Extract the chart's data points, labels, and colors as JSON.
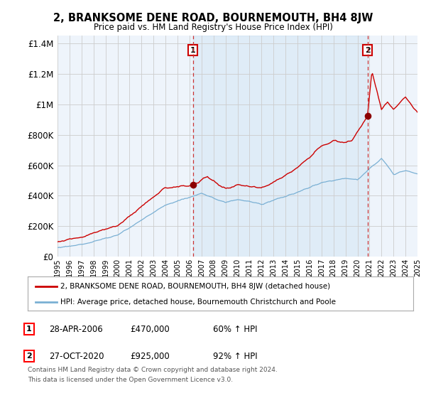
{
  "title": "2, BRANKSOME DENE ROAD, BOURNEMOUTH, BH4 8JW",
  "subtitle": "Price paid vs. HM Land Registry's House Price Index (HPI)",
  "ylabel_ticks": [
    "£0",
    "£200K",
    "£400K",
    "£600K",
    "£800K",
    "£1M",
    "£1.2M",
    "£1.4M"
  ],
  "ytick_values": [
    0,
    200000,
    400000,
    600000,
    800000,
    1000000,
    1200000,
    1400000
  ],
  "ylim": [
    0,
    1450000
  ],
  "xlim": [
    1995,
    2025
  ],
  "sale1_year": 2006.29,
  "sale1_price": 470000,
  "sale2_year": 2020.83,
  "sale2_price": 925000,
  "sale1_date": "28-APR-2006",
  "sale2_date": "27-OCT-2020",
  "sale1_hpi_pct": "60%",
  "sale2_hpi_pct": "92%",
  "legend_property": "2, BRANKSOME DENE ROAD, BOURNEMOUTH, BH4 8JW (detached house)",
  "legend_hpi": "HPI: Average price, detached house, Bournemouth Christchurch and Poole",
  "footnote1": "Contains HM Land Registry data © Crown copyright and database right 2024.",
  "footnote2": "This data is licensed under the Open Government Licence v3.0.",
  "property_line_color": "#cc0000",
  "hpi_line_color": "#7ab0d4",
  "sale_dot_color": "#8b0000",
  "grid_color": "#cccccc",
  "plot_bg_color": "#eef4fb",
  "background_color": "#ffffff",
  "dashed_line_color": "#cc3333",
  "shade_color": "#ddeaf5",
  "label_box_color": "#cc0000"
}
